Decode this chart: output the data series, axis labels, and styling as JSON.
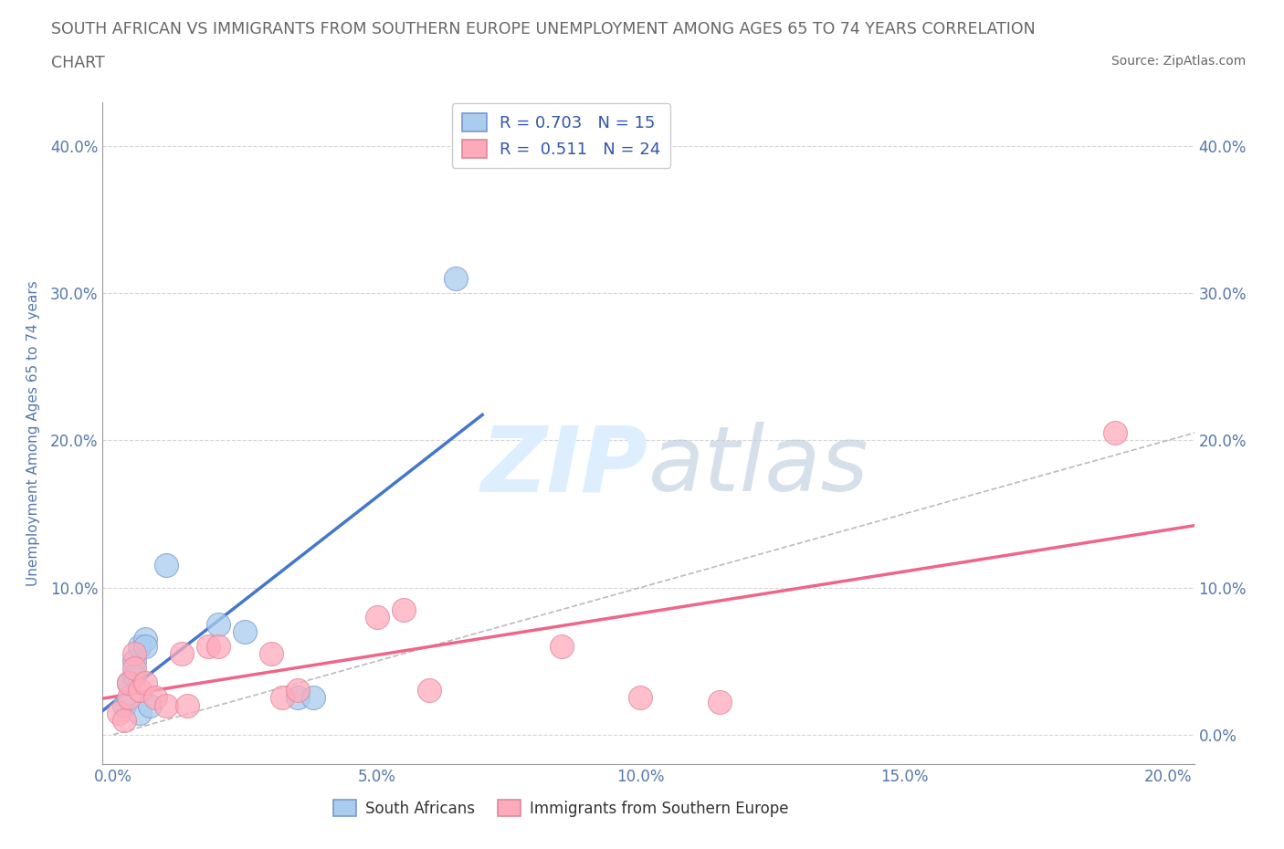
{
  "title_line1": "SOUTH AFRICAN VS IMMIGRANTS FROM SOUTHERN EUROPE UNEMPLOYMENT AMONG AGES 65 TO 74 YEARS CORRELATION",
  "title_line2": "CHART",
  "source": "Source: ZipAtlas.com",
  "ylabel": "Unemployment Among Ages 65 to 74 years",
  "xlim": [
    -0.002,
    0.205
  ],
  "ylim": [
    -0.02,
    0.43
  ],
  "xticks": [
    0.0,
    0.05,
    0.1,
    0.15,
    0.2
  ],
  "yticks": [
    0.0,
    0.1,
    0.2,
    0.3,
    0.4
  ],
  "blue_R": 0.703,
  "blue_N": 15,
  "pink_R": 0.511,
  "pink_N": 24,
  "blue_label": "South Africans",
  "pink_label": "Immigrants from Southern Europe",
  "background_color": "#ffffff",
  "grid_color": "#cccccc",
  "blue_color": "#aaccee",
  "blue_edge": "#7799cc",
  "pink_color": "#ffaabb",
  "pink_edge": "#dd8899",
  "blue_line_color": "#4477cc",
  "pink_line_color": "#ee6688",
  "diag_color": "#bbbbbb",
  "title_color": "#666666",
  "axis_color": "#5577aa",
  "legend_R_color": "#3355aa",
  "watermark_color": "#ddeeff",
  "blue_scatter": [
    [
      0.002,
      0.02
    ],
    [
      0.003,
      0.035
    ],
    [
      0.004,
      0.05
    ],
    [
      0.004,
      0.04
    ],
    [
      0.005,
      0.015
    ],
    [
      0.005,
      0.06
    ],
    [
      0.006,
      0.065
    ],
    [
      0.006,
      0.06
    ],
    [
      0.007,
      0.02
    ],
    [
      0.01,
      0.115
    ],
    [
      0.02,
      0.075
    ],
    [
      0.025,
      0.07
    ],
    [
      0.035,
      0.025
    ],
    [
      0.038,
      0.025
    ],
    [
      0.065,
      0.31
    ]
  ],
  "pink_scatter": [
    [
      0.001,
      0.015
    ],
    [
      0.002,
      0.01
    ],
    [
      0.003,
      0.025
    ],
    [
      0.003,
      0.035
    ],
    [
      0.004,
      0.055
    ],
    [
      0.004,
      0.045
    ],
    [
      0.005,
      0.03
    ],
    [
      0.006,
      0.035
    ],
    [
      0.008,
      0.025
    ],
    [
      0.01,
      0.02
    ],
    [
      0.013,
      0.055
    ],
    [
      0.014,
      0.02
    ],
    [
      0.018,
      0.06
    ],
    [
      0.02,
      0.06
    ],
    [
      0.03,
      0.055
    ],
    [
      0.032,
      0.025
    ],
    [
      0.035,
      0.03
    ],
    [
      0.05,
      0.08
    ],
    [
      0.055,
      0.085
    ],
    [
      0.06,
      0.03
    ],
    [
      0.085,
      0.06
    ],
    [
      0.1,
      0.025
    ],
    [
      0.115,
      0.022
    ],
    [
      0.19,
      0.205
    ]
  ]
}
